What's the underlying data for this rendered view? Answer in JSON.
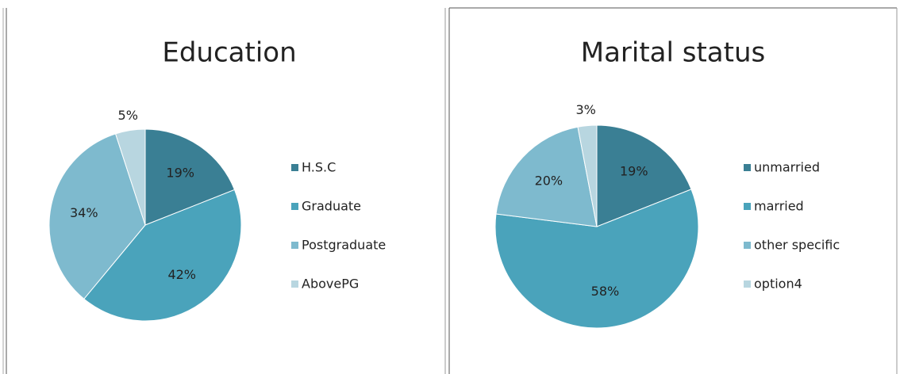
{
  "chart_data": [
    {
      "type": "pie",
      "title": "Education",
      "categories": [
        "H.S.C",
        "Graduate",
        "Postgraduate",
        "AbovePG"
      ],
      "values": [
        19,
        42,
        34,
        5
      ],
      "value_labels": [
        "19%",
        "42%",
        "34%",
        "5%"
      ],
      "colors": [
        "#3a7f94",
        "#4aa3bb",
        "#7ebace",
        "#b8d6e0"
      ]
    },
    {
      "type": "pie",
      "title": "Marital status",
      "categories": [
        "unmarried",
        "married",
        "other specific",
        "option4"
      ],
      "values": [
        19,
        58,
        20,
        3
      ],
      "value_labels": [
        "19%",
        "58%",
        "20%",
        "3%"
      ],
      "colors": [
        "#3a7f94",
        "#4aa3bb",
        "#7ebace",
        "#b8d6e0"
      ]
    }
  ]
}
